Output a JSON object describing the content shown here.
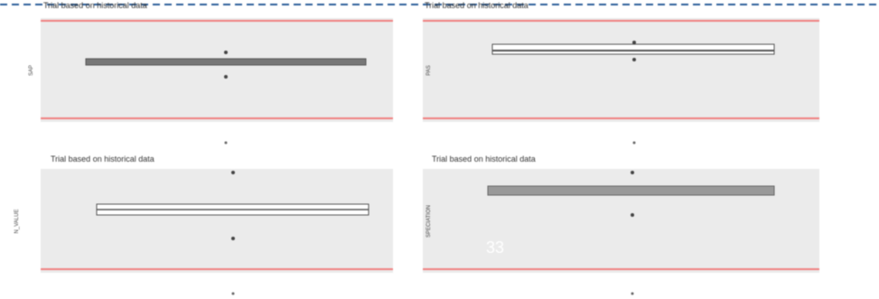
{
  "panels": [
    {
      "title": "Trial based on historical data",
      "ylabel": "SAP"
    },
    {
      "title": "Trial based on historical data",
      "ylabel": "PAS"
    },
    {
      "title": "Trial based on historical data",
      "ylabel": "N_VALUE"
    },
    {
      "title": "Trial based on historical data",
      "ylabel": "SPECIATION"
    }
  ],
  "page_number": "33"
}
